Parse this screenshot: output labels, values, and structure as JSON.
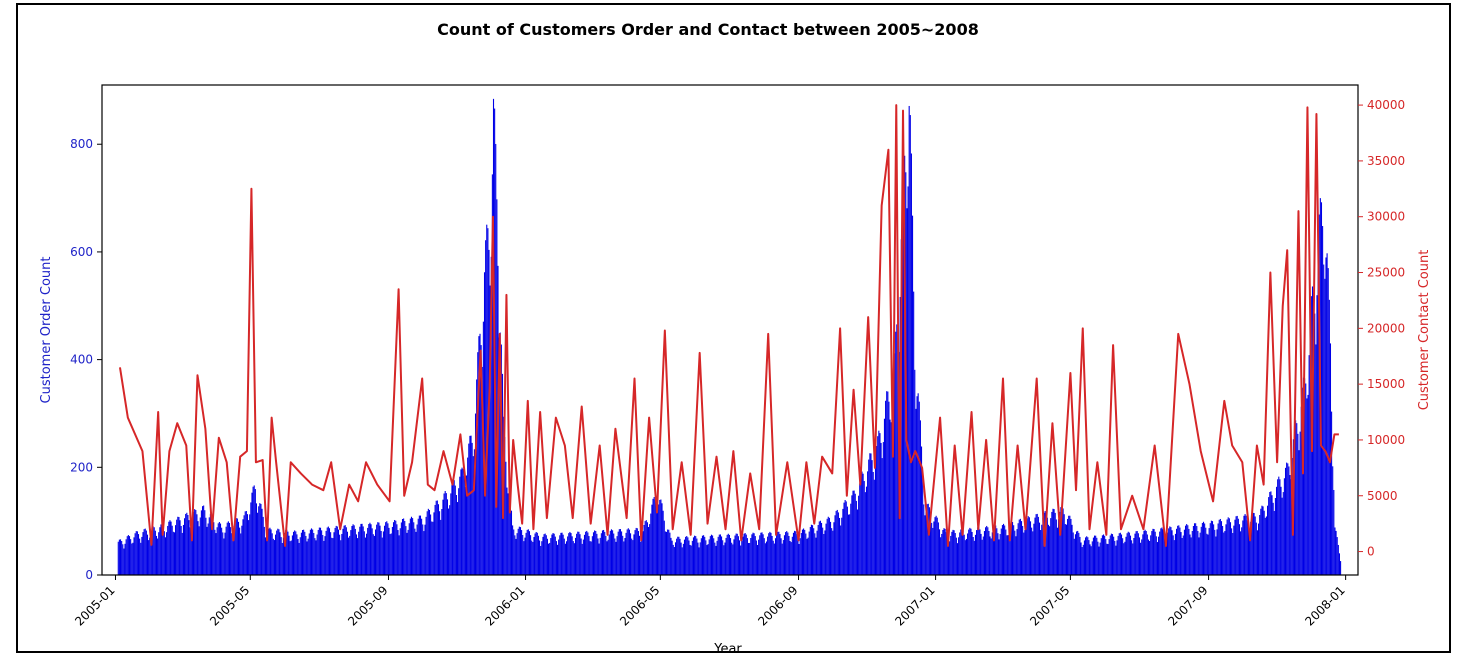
{
  "chart_data": {
    "type": "bar",
    "title": "Count of Customers Order and Contact between 2005~2008",
    "xlabel": "Year",
    "x_ticks": [
      "2005-01",
      "2005-05",
      "2005-09",
      "2006-01",
      "2006-05",
      "2006-09",
      "2007-01",
      "2007-05",
      "2007-09",
      "2008-01"
    ],
    "x_range": [
      "2004-12-20",
      "2008-01-12"
    ],
    "left_axis": {
      "label": "Customer Order Count",
      "ticks": [
        "0",
        "200",
        "400",
        "600",
        "800"
      ],
      "range": [
        0,
        910
      ],
      "color": "#1f23c8"
    },
    "right_axis": {
      "label": "Customer Contact Count",
      "ticks": [
        "0",
        "5000",
        "10000",
        "15000",
        "20000",
        "25000",
        "30000",
        "35000",
        "40000"
      ],
      "range": [
        -2100,
        41800
      ],
      "color": "#d62728"
    },
    "grid": false,
    "series": [
      {
        "name": "Customer Order Count",
        "type": "bar",
        "axis": "left",
        "color": "#0000e6",
        "anchors": [
          [
            "2005-01-03",
            55
          ],
          [
            "2005-01-20",
            70
          ],
          [
            "2005-02-10",
            80
          ],
          [
            "2005-03-01",
            95
          ],
          [
            "2005-03-20",
            110
          ],
          [
            "2005-04-05",
            80
          ],
          [
            "2005-04-25",
            95
          ],
          [
            "2005-05-05",
            150
          ],
          [
            "2005-05-15",
            75
          ],
          [
            "2005-06-10",
            70
          ],
          [
            "2005-07-01",
            75
          ],
          [
            "2005-08-01",
            80
          ],
          [
            "2005-09-01",
            85
          ],
          [
            "2005-10-01",
            95
          ],
          [
            "2005-10-20",
            130
          ],
          [
            "2005-11-05",
            170
          ],
          [
            "2005-11-15",
            240
          ],
          [
            "2005-11-25",
            520
          ],
          [
            "2005-11-30",
            600
          ],
          [
            "2005-12-03",
            780
          ],
          [
            "2005-12-07",
            600
          ],
          [
            "2005-12-12",
            250
          ],
          [
            "2005-12-20",
            80
          ],
          [
            "2006-01-15",
            65
          ],
          [
            "2006-03-01",
            70
          ],
          [
            "2006-04-15",
            75
          ],
          [
            "2006-04-28",
            140
          ],
          [
            "2006-05-10",
            60
          ],
          [
            "2006-07-01",
            65
          ],
          [
            "2006-09-01",
            70
          ],
          [
            "2006-10-01",
            95
          ],
          [
            "2006-10-20",
            135
          ],
          [
            "2006-11-10",
            220
          ],
          [
            "2006-11-25",
            350
          ],
          [
            "2006-12-03",
            650
          ],
          [
            "2006-12-08",
            840
          ],
          [
            "2006-12-13",
            400
          ],
          [
            "2006-12-22",
            120
          ],
          [
            "2007-01-10",
            70
          ],
          [
            "2007-03-01",
            80
          ],
          [
            "2007-04-25",
            110
          ],
          [
            "2007-05-10",
            60
          ],
          [
            "2007-07-01",
            70
          ],
          [
            "2007-09-01",
            85
          ],
          [
            "2007-10-15",
            100
          ],
          [
            "2007-11-10",
            180
          ],
          [
            "2007-11-25",
            320
          ],
          [
            "2007-12-05",
            520
          ],
          [
            "2007-12-12",
            650
          ],
          [
            "2007-12-18",
            400
          ],
          [
            "2007-12-22",
            80
          ],
          [
            "2007-12-28",
            20
          ]
        ]
      },
      {
        "name": "Customer Contact Count",
        "type": "line",
        "axis": "right",
        "color": "#d62728",
        "anchors": [
          [
            "2005-01-05",
            16500
          ],
          [
            "2005-01-12",
            12000
          ],
          [
            "2005-01-25",
            9000
          ],
          [
            "2005-02-02",
            600
          ],
          [
            "2005-02-08",
            12500
          ],
          [
            "2005-02-12",
            1500
          ],
          [
            "2005-02-18",
            9000
          ],
          [
            "2005-02-25",
            11500
          ],
          [
            "2005-03-05",
            9500
          ],
          [
            "2005-03-10",
            1000
          ],
          [
            "2005-03-15",
            15800
          ],
          [
            "2005-03-22",
            11000
          ],
          [
            "2005-03-28",
            2000
          ],
          [
            "2005-04-03",
            10200
          ],
          [
            "2005-04-10",
            8000
          ],
          [
            "2005-04-16",
            1000
          ],
          [
            "2005-04-22",
            8500
          ],
          [
            "2005-04-28",
            9000
          ],
          [
            "2005-05-02",
            32500
          ],
          [
            "2005-05-06",
            8000
          ],
          [
            "2005-05-12",
            8200
          ],
          [
            "2005-05-16",
            1000
          ],
          [
            "2005-05-20",
            12000
          ],
          [
            "2005-05-24",
            8000
          ],
          [
            "2005-06-01",
            500
          ],
          [
            "2005-06-06",
            8000
          ],
          [
            "2005-06-15",
            7000
          ],
          [
            "2005-06-25",
            6000
          ],
          [
            "2005-07-05",
            5500
          ],
          [
            "2005-07-12",
            8000
          ],
          [
            "2005-07-20",
            2000
          ],
          [
            "2005-07-28",
            6000
          ],
          [
            "2005-08-05",
            4500
          ],
          [
            "2005-08-12",
            8000
          ],
          [
            "2005-08-22",
            6000
          ],
          [
            "2005-09-02",
            4500
          ],
          [
            "2005-09-10",
            23500
          ],
          [
            "2005-09-15",
            5000
          ],
          [
            "2005-09-22",
            8000
          ],
          [
            "2005-10-01",
            15500
          ],
          [
            "2005-10-06",
            6000
          ],
          [
            "2005-10-12",
            5500
          ],
          [
            "2005-10-20",
            9000
          ],
          [
            "2005-10-28",
            6000
          ],
          [
            "2005-11-04",
            10500
          ],
          [
            "2005-11-10",
            5000
          ],
          [
            "2005-11-16",
            5500
          ],
          [
            "2005-11-22",
            18000
          ],
          [
            "2005-11-26",
            5000
          ],
          [
            "2005-11-30",
            14500
          ],
          [
            "2005-12-03",
            30000
          ],
          [
            "2005-12-06",
            4000
          ],
          [
            "2005-12-09",
            19500
          ],
          [
            "2005-12-12",
            3000
          ],
          [
            "2005-12-15",
            23000
          ],
          [
            "2005-12-18",
            3500
          ],
          [
            "2005-12-21",
            10000
          ],
          [
            "2005-12-25",
            6000
          ],
          [
            "2005-12-29",
            2500
          ],
          [
            "2006-01-03",
            13500
          ],
          [
            "2006-01-08",
            2000
          ],
          [
            "2006-01-14",
            12500
          ],
          [
            "2006-01-20",
            3000
          ],
          [
            "2006-01-28",
            12000
          ],
          [
            "2006-02-05",
            9500
          ],
          [
            "2006-02-12",
            3000
          ],
          [
            "2006-02-20",
            13000
          ],
          [
            "2006-02-28",
            2500
          ],
          [
            "2006-03-08",
            9500
          ],
          [
            "2006-03-15",
            1500
          ],
          [
            "2006-03-22",
            11000
          ],
          [
            "2006-04-01",
            3000
          ],
          [
            "2006-04-08",
            15500
          ],
          [
            "2006-04-14",
            1000
          ],
          [
            "2006-04-21",
            12000
          ],
          [
            "2006-04-28",
            3500
          ],
          [
            "2006-05-05",
            19800
          ],
          [
            "2006-05-12",
            2000
          ],
          [
            "2006-05-20",
            8000
          ],
          [
            "2006-05-28",
            1500
          ],
          [
            "2006-06-05",
            17800
          ],
          [
            "2006-06-12",
            2500
          ],
          [
            "2006-06-20",
            8500
          ],
          [
            "2006-06-28",
            2000
          ],
          [
            "2006-07-05",
            9000
          ],
          [
            "2006-07-12",
            1000
          ],
          [
            "2006-07-20",
            7000
          ],
          [
            "2006-07-28",
            2000
          ],
          [
            "2006-08-05",
            19500
          ],
          [
            "2006-08-12",
            1500
          ],
          [
            "2006-08-22",
            8000
          ],
          [
            "2006-09-01",
            1000
          ],
          [
            "2006-09-08",
            8000
          ],
          [
            "2006-09-15",
            2500
          ],
          [
            "2006-09-22",
            8500
          ],
          [
            "2006-10-01",
            7000
          ],
          [
            "2006-10-08",
            20000
          ],
          [
            "2006-10-14",
            5000
          ],
          [
            "2006-10-20",
            14500
          ],
          [
            "2006-10-26",
            6000
          ],
          [
            "2006-11-02",
            21000
          ],
          [
            "2006-11-08",
            7500
          ],
          [
            "2006-11-14",
            31000
          ],
          [
            "2006-11-20",
            36000
          ],
          [
            "2006-11-24",
            8500
          ],
          [
            "2006-11-27",
            40000
          ],
          [
            "2006-11-30",
            3000
          ],
          [
            "2006-12-03",
            39500
          ],
          [
            "2006-12-06",
            10000
          ],
          [
            "2006-12-10",
            8000
          ],
          [
            "2006-12-14",
            9000
          ],
          [
            "2006-12-20",
            7500
          ],
          [
            "2006-12-26",
            1500
          ],
          [
            "2007-01-05",
            12000
          ],
          [
            "2007-01-12",
            500
          ],
          [
            "2007-01-18",
            9500
          ],
          [
            "2007-01-25",
            1500
          ],
          [
            "2007-02-02",
            12500
          ],
          [
            "2007-02-08",
            2000
          ],
          [
            "2007-02-15",
            10000
          ],
          [
            "2007-02-22",
            1000
          ],
          [
            "2007-03-02",
            15500
          ],
          [
            "2007-03-08",
            1000
          ],
          [
            "2007-03-15",
            9500
          ],
          [
            "2007-03-22",
            2000
          ],
          [
            "2007-04-01",
            15500
          ],
          [
            "2007-04-08",
            500
          ],
          [
            "2007-04-15",
            11500
          ],
          [
            "2007-04-22",
            1500
          ],
          [
            "2007-05-01",
            16000
          ],
          [
            "2007-05-06",
            5500
          ],
          [
            "2007-05-12",
            20000
          ],
          [
            "2007-05-18",
            2000
          ],
          [
            "2007-05-25",
            8000
          ],
          [
            "2007-06-02",
            1500
          ],
          [
            "2007-06-08",
            18500
          ],
          [
            "2007-06-15",
            2000
          ],
          [
            "2007-06-25",
            5000
          ],
          [
            "2007-07-05",
            2000
          ],
          [
            "2007-07-15",
            9500
          ],
          [
            "2007-07-25",
            500
          ],
          [
            "2007-08-05",
            19500
          ],
          [
            "2007-08-15",
            15000
          ],
          [
            "2007-08-25",
            9000
          ],
          [
            "2007-09-05",
            4500
          ],
          [
            "2007-09-15",
            13500
          ],
          [
            "2007-09-22",
            9500
          ],
          [
            "2007-10-01",
            8000
          ],
          [
            "2007-10-08",
            1000
          ],
          [
            "2007-10-14",
            9500
          ],
          [
            "2007-10-20",
            6000
          ],
          [
            "2007-10-26",
            25000
          ],
          [
            "2007-11-01",
            8000
          ],
          [
            "2007-11-06",
            22000
          ],
          [
            "2007-11-10",
            27000
          ],
          [
            "2007-11-15",
            1500
          ],
          [
            "2007-11-20",
            30500
          ],
          [
            "2007-11-24",
            7000
          ],
          [
            "2007-11-28",
            39800
          ],
          [
            "2007-12-02",
            9000
          ],
          [
            "2007-12-06",
            39200
          ],
          [
            "2007-12-10",
            9500
          ],
          [
            "2007-12-14",
            9000
          ],
          [
            "2007-12-18",
            8000
          ],
          [
            "2007-12-22",
            10500
          ],
          [
            "2007-12-26",
            10500
          ]
        ]
      }
    ]
  }
}
